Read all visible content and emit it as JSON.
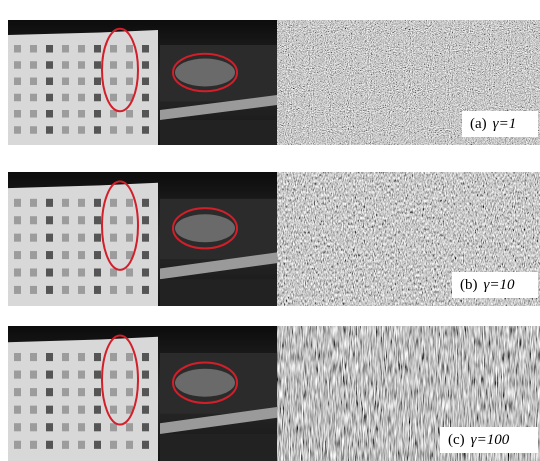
{
  "panels": [
    {
      "tag": "(a)",
      "param": "γ=1"
    },
    {
      "tag": "(b)",
      "param": "γ=10"
    },
    {
      "tag": "(c)",
      "param": "γ=100"
    }
  ]
}
